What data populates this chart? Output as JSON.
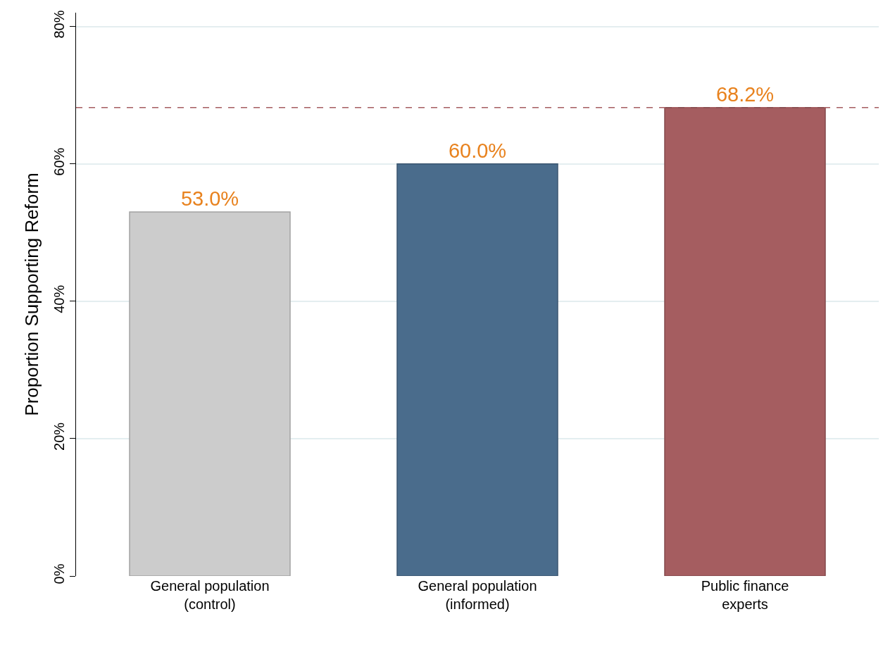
{
  "chart_data": {
    "type": "bar",
    "ylabel": "Proportion Supporting Reform",
    "categories": [
      "General population\n(control)",
      "General population\n(informed)",
      "Public finance\nexperts"
    ],
    "values": [
      53.0,
      60.0,
      68.2
    ],
    "colors": [
      "#cccccc",
      "#4a6c8c",
      "#a55d60"
    ],
    "value_labels": [
      "53.0%",
      "60.0%",
      "68.2%"
    ],
    "ylim": [
      0,
      82
    ],
    "yticks": [
      {
        "value": 0,
        "label": "0%"
      },
      {
        "value": 20,
        "label": "20%"
      },
      {
        "value": 40,
        "label": "40%"
      },
      {
        "value": 60,
        "label": "60%"
      },
      {
        "value": 80,
        "label": "80%"
      }
    ],
    "grid": "y",
    "ref_lines": [
      {
        "axis": "y",
        "value": 68.2,
        "label": null,
        "color": "#a55d60",
        "line_style": "dashed"
      }
    ]
  }
}
